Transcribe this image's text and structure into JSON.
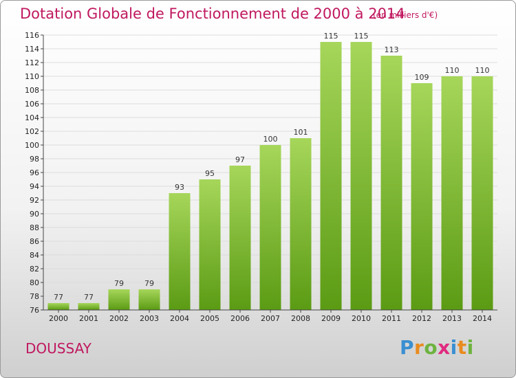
{
  "header": {
    "title": "Dotation Globale de Fonctionnement de 2000 à 2014",
    "subtitle": "(en milliers d'€)"
  },
  "footer": {
    "town": "DOUSSAY",
    "logo": "Proxiti"
  },
  "colors": {
    "bar_top": "#9fd050",
    "bar_bottom": "#5a9a12",
    "title": "#c0185f"
  },
  "chart_data": {
    "type": "bar",
    "title": "Dotation Globale de Fonctionnement de 2000 à 2014",
    "subtitle": "(en milliers d'€)",
    "xlabel": "",
    "ylabel": "",
    "categories": [
      "2000",
      "2001",
      "2002",
      "2003",
      "2004",
      "2005",
      "2006",
      "2007",
      "2008",
      "2009",
      "2010",
      "2011",
      "2012",
      "2013",
      "2014"
    ],
    "values": [
      77,
      77,
      79,
      79,
      93,
      95,
      97,
      100,
      101,
      115,
      115,
      113,
      109,
      110,
      110
    ],
    "ylim": [
      76,
      116
    ],
    "yticks": [
      76,
      78,
      80,
      82,
      84,
      86,
      88,
      90,
      92,
      94,
      96,
      98,
      100,
      102,
      104,
      106,
      108,
      110,
      112,
      114,
      116
    ],
    "grid": true,
    "legend": "none"
  }
}
